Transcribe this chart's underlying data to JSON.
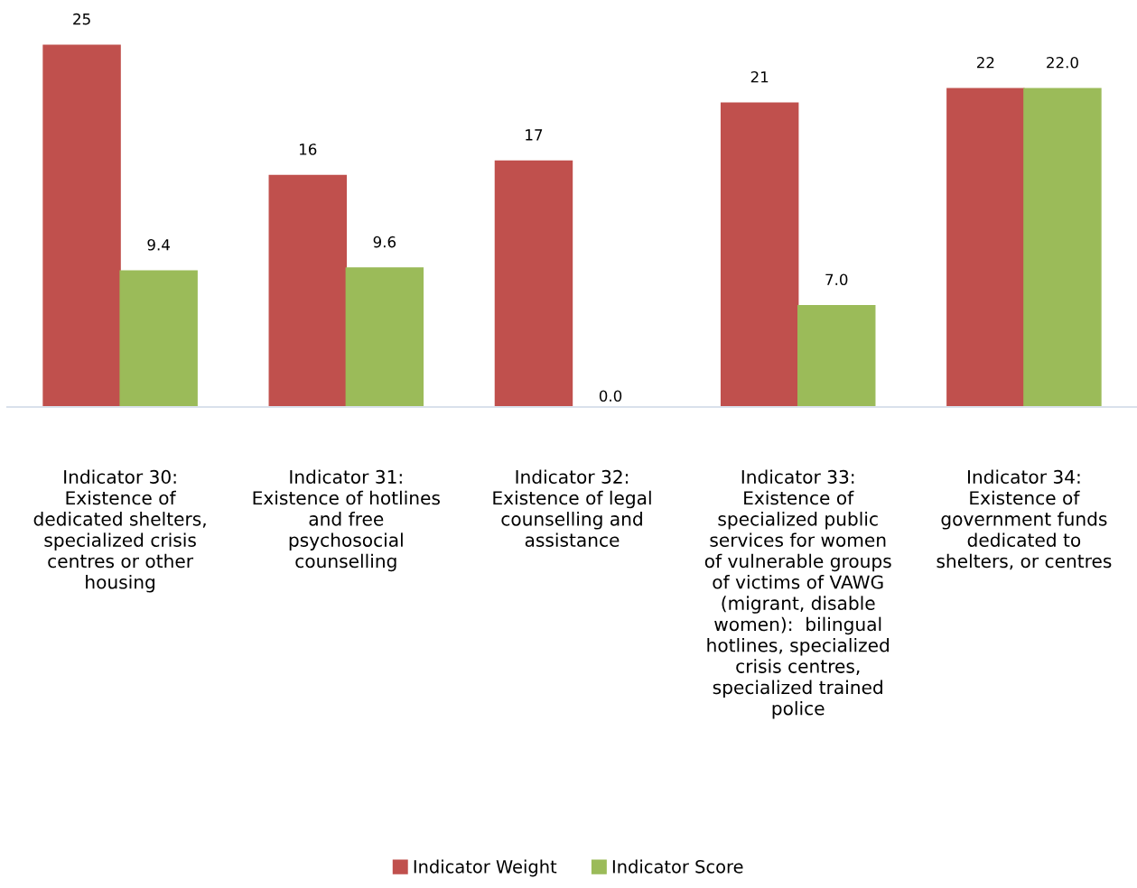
{
  "chart_data": {
    "type": "bar",
    "categories": [
      "Indicator 30:\nExistence of\ndedicated shelters,\nspecialized crisis\ncentres or other\nhousing",
      "Indicator 31:\nExistence of hotlines\nand free\npsychosocial\ncounselling",
      "Indicator 32:\nExistence of legal\ncounselling and\nassistance",
      "Indicator 33:\nExistence of\nspecialized public\nservices for women\nof vulnerable groups\nof victims of VAWG\n(migrant, disable\nwomen):  bilingual\nhotlines, specialized\ncrisis centres,\nspecialized trained\npolice",
      "Indicator 34:\nExistence of\ngovernment funds\ndedicated to\nshelters, or centres"
    ],
    "series": [
      {
        "name": "Indicator Weight",
        "color": "#c0504d",
        "values": [
          25,
          16,
          17,
          21,
          22
        ],
        "value_labels": [
          "25",
          "16",
          "17",
          "21",
          "22"
        ]
      },
      {
        "name": "Indicator Score",
        "color": "#9bbb59",
        "values": [
          9.4,
          9.6,
          0.0,
          7.0,
          22.0
        ],
        "value_labels": [
          "9.4",
          "9.6",
          "0.0",
          "7.0",
          "22.0"
        ]
      }
    ],
    "legend": "bottom",
    "grid": false,
    "tick_labels": "x"
  }
}
